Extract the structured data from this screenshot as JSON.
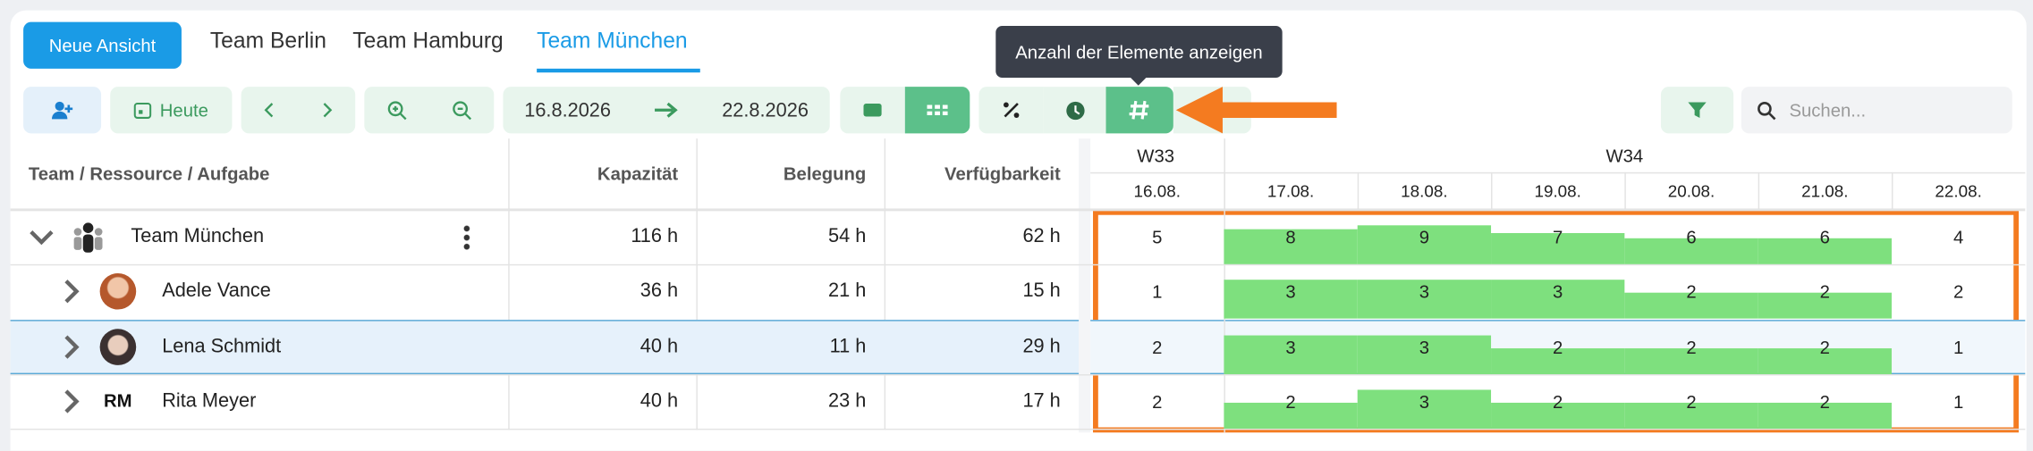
{
  "header": {
    "new_view_button": "Neue Ansicht",
    "tabs": [
      "Team Berlin",
      "Team Hamburg",
      "Team München"
    ],
    "active_tab": 2
  },
  "toolbar": {
    "today_button": "Heute",
    "date_from": "16.8.2026",
    "date_to": "22.8.2026",
    "search_placeholder": "Suchen...",
    "tooltip": "Anzahl der Elemente anzeigen"
  },
  "table": {
    "columns": [
      "Team / Ressource / Aufgabe",
      "Kapazität",
      "Belegung",
      "Verfügbarkeit"
    ],
    "rows": [
      {
        "name": "Team München",
        "capacity": "116 h",
        "occupancy": "54 h",
        "availability": "62 h"
      },
      {
        "name": "Adele Vance",
        "capacity": "36 h",
        "occupancy": "21 h",
        "availability": "15 h"
      },
      {
        "name": "Lena Schmidt",
        "capacity": "40 h",
        "occupancy": "11 h",
        "availability": "29 h",
        "selected": true
      },
      {
        "name": "Rita Meyer",
        "initials": "RM",
        "capacity": "40 h",
        "occupancy": "23 h",
        "availability": "17 h"
      }
    ]
  },
  "timeline": {
    "weeks": [
      {
        "label": "W33",
        "days": 1
      },
      {
        "label": "W34",
        "days": 6
      }
    ],
    "days": [
      {
        "label": "16.08.",
        "workday": false
      },
      {
        "label": "17.08.",
        "workday": true
      },
      {
        "label": "18.08.",
        "workday": true
      },
      {
        "label": "19.08.",
        "workday": true
      },
      {
        "label": "20.08.",
        "workday": true
      },
      {
        "label": "21.08.",
        "workday": true
      },
      {
        "label": "22.08.",
        "workday": false
      }
    ],
    "rows": [
      [
        5,
        8,
        9,
        7,
        6,
        6,
        4
      ],
      [
        1,
        3,
        3,
        3,
        2,
        2,
        2
      ],
      [
        2,
        3,
        3,
        2,
        2,
        2,
        1
      ],
      [
        2,
        2,
        3,
        2,
        2,
        2,
        1
      ]
    ],
    "bar_color": "#7ee07e"
  }
}
